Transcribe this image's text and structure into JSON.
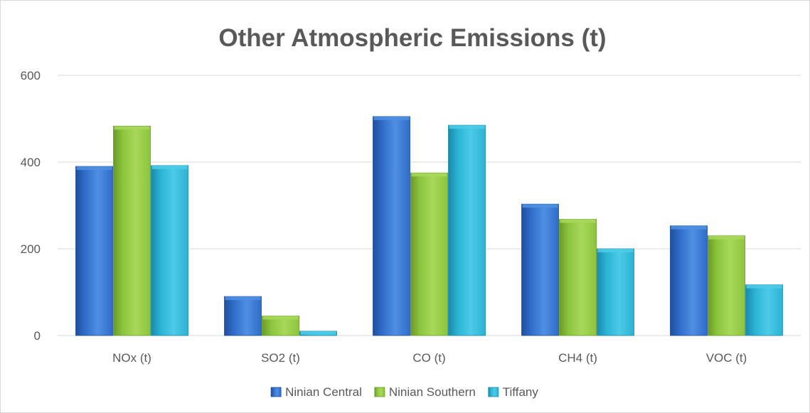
{
  "chart_data": {
    "type": "bar",
    "title": "Other Atmospheric Emissions (t)",
    "xlabel": "",
    "ylabel": "",
    "categories": [
      "NOx (t)",
      "SO2 (t)",
      "CO (t)",
      "CH4 (t)",
      "VOC (t)"
    ],
    "series": [
      {
        "name": "Ninian Central",
        "values": [
          390,
          90,
          505,
          303,
          253
        ]
      },
      {
        "name": "Ninian Southern",
        "values": [
          483,
          45,
          375,
          268,
          230
        ]
      },
      {
        "name": "Tiffany",
        "values": [
          392,
          10,
          485,
          200,
          117
        ]
      }
    ],
    "ylim": [
      0,
      600
    ],
    "yticks": [
      "0",
      "200",
      "400",
      "600"
    ],
    "grid": true,
    "legend": "bottom",
    "colors": {
      "series": [
        "#2f6cc9",
        "#8cc43e",
        "#2bb2d4"
      ],
      "series_light": [
        "#4f8fe3",
        "#a8d85a",
        "#4dcbe8"
      ],
      "series_dark": [
        "#1f4f9c",
        "#6a9a26",
        "#1a8aa8"
      ],
      "grid": "#d9d9d9",
      "text": "#595959"
    }
  }
}
